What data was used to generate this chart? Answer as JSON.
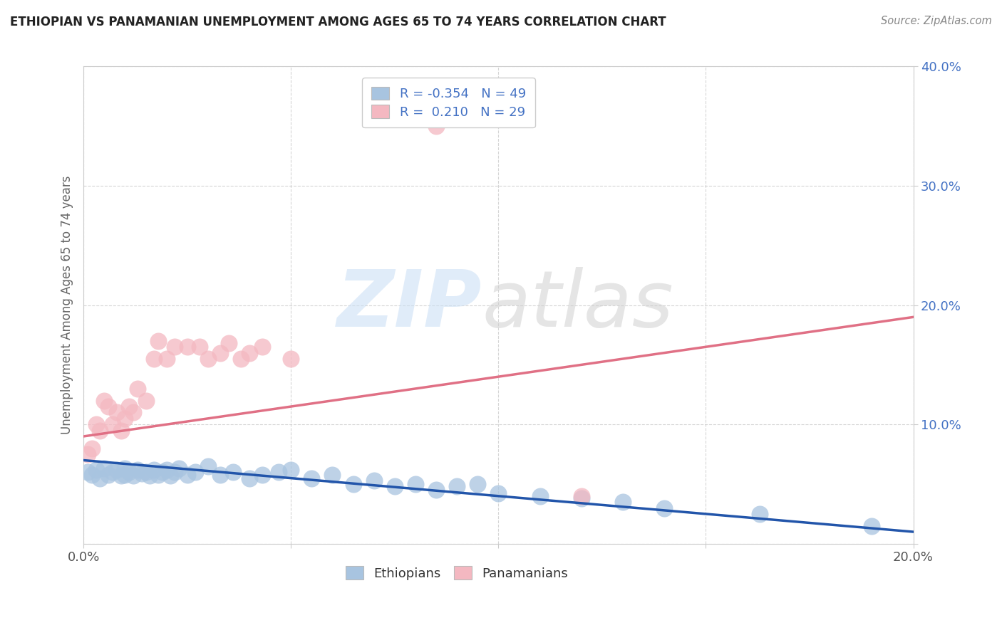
{
  "title": "ETHIOPIAN VS PANAMANIAN UNEMPLOYMENT AMONG AGES 65 TO 74 YEARS CORRELATION CHART",
  "source": "Source: ZipAtlas.com",
  "ylabel": "Unemployment Among Ages 65 to 74 years",
  "xlim": [
    0.0,
    0.2
  ],
  "ylim": [
    0.0,
    0.4
  ],
  "xticks": [
    0.0,
    0.05,
    0.1,
    0.15,
    0.2
  ],
  "yticks": [
    0.0,
    0.1,
    0.2,
    0.3,
    0.4
  ],
  "ethiopian_R": -0.354,
  "ethiopian_N": 49,
  "panamanian_R": 0.21,
  "panamanian_N": 29,
  "ethiopian_color": "#a8c4e0",
  "panamanian_color": "#f4b8c1",
  "ethiopian_line_color": "#2255aa",
  "panamanian_line_color": "#e07085",
  "background_color": "#ffffff",
  "tick_label_color": "#4472c4",
  "ethiopian_x": [
    0.001,
    0.002,
    0.003,
    0.004,
    0.005,
    0.006,
    0.007,
    0.008,
    0.009,
    0.01,
    0.01,
    0.011,
    0.012,
    0.013,
    0.014,
    0.015,
    0.016,
    0.017,
    0.018,
    0.019,
    0.02,
    0.021,
    0.022,
    0.023,
    0.025,
    0.027,
    0.03,
    0.033,
    0.036,
    0.04,
    0.043,
    0.047,
    0.05,
    0.055,
    0.06,
    0.065,
    0.07,
    0.075,
    0.08,
    0.085,
    0.09,
    0.095,
    0.1,
    0.11,
    0.12,
    0.13,
    0.14,
    0.163,
    0.19
  ],
  "ethiopian_y": [
    0.06,
    0.058,
    0.062,
    0.055,
    0.063,
    0.058,
    0.06,
    0.062,
    0.057,
    0.058,
    0.063,
    0.06,
    0.057,
    0.062,
    0.059,
    0.06,
    0.057,
    0.062,
    0.058,
    0.06,
    0.062,
    0.057,
    0.06,
    0.063,
    0.058,
    0.06,
    0.065,
    0.058,
    0.06,
    0.055,
    0.058,
    0.06,
    0.062,
    0.055,
    0.058,
    0.05,
    0.053,
    0.048,
    0.05,
    0.045,
    0.048,
    0.05,
    0.042,
    0.04,
    0.038,
    0.035,
    0.03,
    0.025,
    0.015
  ],
  "panamanian_x": [
    0.001,
    0.002,
    0.003,
    0.004,
    0.005,
    0.006,
    0.007,
    0.008,
    0.009,
    0.01,
    0.011,
    0.012,
    0.013,
    0.015,
    0.017,
    0.018,
    0.02,
    0.022,
    0.025,
    0.028,
    0.03,
    0.033,
    0.035,
    0.038,
    0.04,
    0.043,
    0.05,
    0.085,
    0.12
  ],
  "panamanian_y": [
    0.075,
    0.08,
    0.1,
    0.095,
    0.12,
    0.115,
    0.1,
    0.11,
    0.095,
    0.105,
    0.115,
    0.11,
    0.13,
    0.12,
    0.155,
    0.17,
    0.155,
    0.165,
    0.165,
    0.165,
    0.155,
    0.16,
    0.168,
    0.155,
    0.16,
    0.165,
    0.155,
    0.35,
    0.04
  ]
}
